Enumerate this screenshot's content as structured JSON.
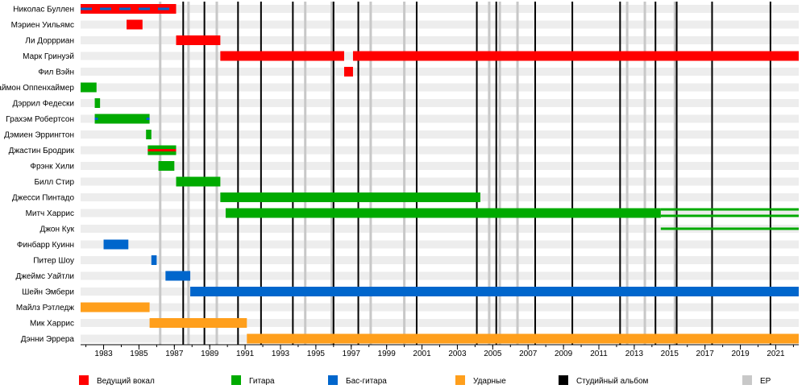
{
  "chart_data": {
    "type": "timeline",
    "x_range": [
      1981.7,
      2022.3
    ],
    "x_ticks": [
      "1983",
      "1985",
      "1987",
      "1989",
      "1991",
      "1993",
      "1995",
      "1997",
      "1999",
      "2001",
      "2003",
      "2005",
      "2007",
      "2009",
      "2011",
      "2013",
      "2015",
      "2017",
      "2019",
      "2021"
    ],
    "colors": {
      "vocals": "#ff0000",
      "guitar": "#00aa00",
      "bass": "#0066cc",
      "drums": "#ff9f1c",
      "album": "#000000",
      "ep": "#c8c8c8",
      "row_stripe": "#ededed"
    },
    "legend": [
      {
        "key": "vocals",
        "label": "Ведущий вокал"
      },
      {
        "key": "guitar",
        "label": "Гитара"
      },
      {
        "key": "bass",
        "label": "Бас-гитара"
      },
      {
        "key": "drums",
        "label": "Ударные"
      },
      {
        "key": "album",
        "label": "Студийный альбом"
      },
      {
        "key": "ep",
        "label": "EP"
      }
    ],
    "albums": [
      1987.5,
      1988.7,
      1990.6,
      1991.9,
      1993.7,
      1996.0,
      1997.4,
      2000.7,
      2004.1,
      2005.2,
      2007.4,
      2009.5,
      2012.2,
      2014.2,
      2015.4,
      2017.4,
      2020.7
    ],
    "eps": [
      1986.2,
      1987.8,
      1989.4,
      1994.4,
      1995.9,
      1998.1,
      2000.0,
      2004.8,
      2005.4,
      2006.4,
      2012.6,
      2013.6,
      2015.3
    ],
    "members": [
      {
        "name": "Николас Буллен",
        "bars": [
          {
            "role": "vocals",
            "start": 1981.7,
            "end": 1987.1
          },
          {
            "role": "bass_stripe",
            "start": 1981.7,
            "end": 1987.1
          }
        ]
      },
      {
        "name": "Мэриен Уильямс",
        "bars": [
          {
            "role": "vocals",
            "start": 1984.3,
            "end": 1985.2
          }
        ]
      },
      {
        "name": "Ли Доррриан",
        "bars": [
          {
            "role": "vocals",
            "start": 1987.1,
            "end": 1989.6
          }
        ]
      },
      {
        "name": "Марк Гринуэй",
        "bars": [
          {
            "role": "vocals",
            "start": 1989.6,
            "end": 1996.6
          },
          {
            "role": "vocals",
            "start": 1997.1,
            "end": 2022.3
          }
        ]
      },
      {
        "name": "Фил Вэйн",
        "bars": [
          {
            "role": "vocals",
            "start": 1996.6,
            "end": 1997.1
          }
        ]
      },
      {
        "name": "Саймон Оппенхаймер",
        "bars": [
          {
            "role": "guitar",
            "start": 1981.7,
            "end": 1982.6
          }
        ]
      },
      {
        "name": "Дэррил Федески",
        "bars": [
          {
            "role": "guitar",
            "start": 1982.5,
            "end": 1982.8
          }
        ]
      },
      {
        "name": "Грахэм Робертсон",
        "bars": [
          {
            "role": "guitar",
            "start": 1982.5,
            "end": 1985.6
          },
          {
            "role": "bass_dots",
            "start": 1982.5,
            "end": 1985.6
          }
        ]
      },
      {
        "name": "Дэмиен Эррингтон",
        "bars": [
          {
            "role": "guitar",
            "start": 1985.4,
            "end": 1985.7
          }
        ]
      },
      {
        "name": "Джастин Бродрик",
        "bars": [
          {
            "role": "guitar",
            "start": 1985.5,
            "end": 1987.1
          },
          {
            "role": "vocals_stripe",
            "start": 1985.5,
            "end": 1987.1
          }
        ]
      },
      {
        "name": "Фрэнк Хили",
        "bars": [
          {
            "role": "guitar",
            "start": 1986.1,
            "end": 1987.0
          }
        ]
      },
      {
        "name": "Билл Стир",
        "bars": [
          {
            "role": "guitar",
            "start": 1987.1,
            "end": 1989.6
          }
        ]
      },
      {
        "name": "Джесси Пинтадо",
        "bars": [
          {
            "role": "guitar",
            "start": 1989.6,
            "end": 2004.3
          }
        ]
      },
      {
        "name": "Митч Харрис",
        "bars": [
          {
            "role": "guitar",
            "start": 1989.9,
            "end": 2014.5
          },
          {
            "role": "guitar_half",
            "start": 2014.5,
            "end": 2022.3
          }
        ]
      },
      {
        "name": "Джон Кук",
        "bars": [
          {
            "role": "guitar_thin",
            "start": 2014.5,
            "end": 2022.3
          }
        ]
      },
      {
        "name": "Финбарр Куинн",
        "bars": [
          {
            "role": "bass",
            "start": 1983.0,
            "end": 1984.4
          }
        ]
      },
      {
        "name": "Питер Шоу",
        "bars": [
          {
            "role": "bass",
            "start": 1985.7,
            "end": 1986.0
          }
        ]
      },
      {
        "name": "Джеймс Уайтли",
        "bars": [
          {
            "role": "bass",
            "start": 1986.5,
            "end": 1987.9
          }
        ]
      },
      {
        "name": "Шейн Эмбери",
        "bars": [
          {
            "role": "bass",
            "start": 1987.9,
            "end": 2022.3
          }
        ]
      },
      {
        "name": "Майлз Рэтледж",
        "bars": [
          {
            "role": "drums",
            "start": 1981.7,
            "end": 1985.6
          }
        ]
      },
      {
        "name": "Мик Харрис",
        "bars": [
          {
            "role": "drums",
            "start": 1985.6,
            "end": 1991.1
          }
        ]
      },
      {
        "name": "Дэнни Эррера",
        "bars": [
          {
            "role": "drums",
            "start": 1991.1,
            "end": 2022.3
          }
        ]
      }
    ]
  }
}
